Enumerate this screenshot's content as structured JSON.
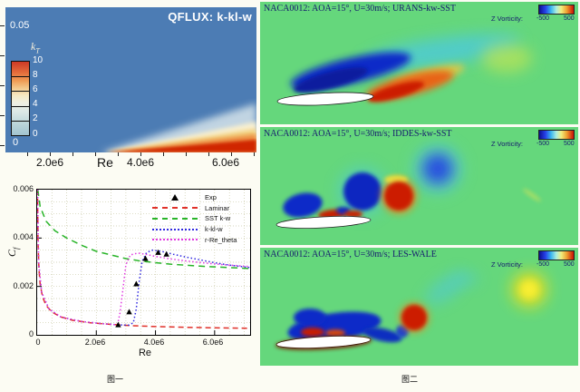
{
  "figure1": {
    "caption": "图一",
    "qflux": {
      "title": "QFLUX: k-kl-w",
      "y_axis": {
        "top_tick": "0.05",
        "bottom_tick": "0"
      },
      "x_axis": {
        "label": "Re",
        "ticks": [
          "2.0e6",
          "4.0e6",
          "6.0e6"
        ]
      },
      "colorbar": {
        "label_main": "k",
        "label_sub": "T",
        "ticks": [
          "10",
          "8",
          "6",
          "4",
          "2",
          "0"
        ]
      },
      "colors": {
        "field_blue": "#4c7cb4",
        "wedge_red": "#d02806"
      }
    },
    "cf_chart": {
      "ylabel_main": "C",
      "ylabel_sub": "f",
      "xlabel": "Re",
      "y_ticks": [
        "0.006",
        "0.004",
        "0.002",
        "0"
      ],
      "x_ticks": [
        "0",
        "2.0e6",
        "4.0e6",
        "6.0e6"
      ],
      "legend": [
        {
          "label": "Exp",
          "style": "triangle",
          "color": "#000000"
        },
        {
          "label": "Laminar",
          "style": "dashed",
          "color": "#e03028"
        },
        {
          "label": "SST k-w",
          "style": "dashed",
          "color": "#28b428"
        },
        {
          "label": "k-kl-w",
          "style": "dotted",
          "color": "#3028e0"
        },
        {
          "label": "r-Re_theta",
          "style": "dotted",
          "color": "#e038e0"
        }
      ]
    }
  },
  "figure2": {
    "caption": "图二",
    "colorbar": {
      "label": "Z Vorticity:",
      "min": "-500",
      "max": "500"
    },
    "panels": [
      {
        "title": "NACA0012: AOA=15°, U=30m/s; URANS-kw-SST"
      },
      {
        "title": "NACA0012: AOA=15°, U=30m/s; IDDES-kw-SST"
      },
      {
        "title": "NACA0012: AOA=15°, U=30m/s; LES-WALE"
      }
    ]
  },
  "chart_data": [
    {
      "type": "heatmap",
      "title": "QFLUX: k-kl-w",
      "quantity": "kT (turbulent kinetic energy)",
      "colorbar_ticks": [
        10,
        8,
        6,
        4,
        2,
        0
      ],
      "xlabel": "Re",
      "x_ticks": [
        "2.0e6",
        "4.0e6",
        "6.0e6"
      ],
      "x_range_e6": [
        1.1,
        6.7
      ],
      "ylim": [
        0,
        0.05
      ],
      "description": "Background field value 0 (blue). A transition wedge starts at the wall (y=0) near Re=3.2e6 and widens to the right; core of wedge reaches kT≈10 (red) with orange/yellow/white/cyan layers fading upward into blue."
    },
    {
      "type": "line",
      "title": "Skin friction coefficient vs Reynolds number",
      "xlabel": "Re",
      "ylabel": "Cf",
      "xlim_e6": [
        0,
        7.2
      ],
      "ylim": [
        0,
        0.006
      ],
      "grid": {
        "x_step_e6": 0.5,
        "y_step": 0.0005
      },
      "legend_position": "top-right",
      "series": [
        {
          "name": "Laminar",
          "color": "#e03028",
          "dash": "6,4",
          "width": 1.5,
          "x_e6": [
            0.012,
            0.03,
            0.06,
            0.1,
            0.18,
            0.3,
            0.5,
            0.8,
            1.2,
            1.8,
            2.5,
            3.2,
            4.0,
            5.0,
            6.0,
            6.5,
            7.2
          ],
          "y": [
            0.006,
            0.0038,
            0.0027,
            0.0021,
            0.00157,
            0.00122,
            0.00094,
            0.00074,
            0.0006,
            0.0005,
            0.00043,
            0.00038,
            0.00034,
            0.00031,
            0.00029,
            0.00028,
            0.00027
          ]
        },
        {
          "name": "SST k-w",
          "color": "#28b428",
          "dash": "7,5",
          "width": 1.5,
          "x_e6": [
            0.02,
            0.1,
            0.3,
            0.6,
            1.0,
            1.5,
            2.0,
            2.5,
            3.0,
            3.5,
            4.0,
            4.5,
            5.0,
            5.5,
            6.0,
            6.5,
            7.2
          ],
          "y": [
            0.006,
            0.0053,
            0.0047,
            0.0043,
            0.004,
            0.0037,
            0.00345,
            0.0033,
            0.00315,
            0.00305,
            0.00298,
            0.00292,
            0.00288,
            0.00284,
            0.00281,
            0.00278,
            0.00274
          ]
        },
        {
          "name": "k-kl-w",
          "color": "#3028e0",
          "dash": "1.5,2.5",
          "width": 1.5,
          "x_e6": [
            0.012,
            0.05,
            0.15,
            0.4,
            0.8,
            1.5,
            2.2,
            2.8,
            3.1,
            3.25,
            3.35,
            3.45,
            3.55,
            3.7,
            3.9,
            4.2,
            4.6,
            5.0,
            5.5,
            6.0,
            6.5,
            7.2
          ],
          "y": [
            0.006,
            0.003,
            0.00175,
            0.00107,
            0.00074,
            0.00055,
            0.00046,
            0.00041,
            0.0004,
            0.0005,
            0.00105,
            0.0022,
            0.00305,
            0.0034,
            0.0035,
            0.00345,
            0.00333,
            0.00322,
            0.0031,
            0.00298,
            0.00288,
            0.00278
          ]
        },
        {
          "name": "r-Re_theta",
          "color": "#e038e0",
          "dash": "1.5,2.5",
          "width": 1.5,
          "x_e6": [
            0.012,
            0.05,
            0.15,
            0.4,
            0.8,
            1.5,
            2.2,
            2.6,
            2.72,
            2.8,
            2.9,
            3.0,
            3.15,
            3.4,
            3.7,
            4.0,
            4.5,
            5.0,
            5.5,
            6.0,
            6.5,
            7.2
          ],
          "y": [
            0.006,
            0.003,
            0.00175,
            0.00107,
            0.00074,
            0.00055,
            0.00046,
            0.00042,
            0.00044,
            0.0009,
            0.0019,
            0.0029,
            0.0033,
            0.00338,
            0.00332,
            0.00324,
            0.00314,
            0.00306,
            0.00299,
            0.00293,
            0.00288,
            0.00282
          ]
        }
      ],
      "scatter": {
        "name": "Exp",
        "marker": "triangle",
        "color": "#000000",
        "x_e6": [
          2.74,
          3.11,
          3.35,
          3.66,
          4.09,
          4.37
        ],
        "y": [
          0.00041,
          0.00094,
          0.0021,
          0.00315,
          0.0034,
          0.00333
        ]
      }
    },
    {
      "type": "heatmap",
      "quantity": "Z Vorticity",
      "range": [
        -500,
        500
      ],
      "panels": [
        {
          "title": "NACA0012: AOA=15°, U=30m/s; URANS-kw-SST",
          "description": "Smooth attached shear layers: blue negative-vorticity layer over suction side trailing into cyan wake, red/orange positive layer from trailing edge, faint yellow blob downstream."
        },
        {
          "title": "NACA0012: AOA=15°, U=30m/s; IDDES-kw-SST",
          "description": "Discrete shed vortices: blue bubble at leading edge, large blue vortex and strong red vortex above trailing edge, diffuse blue vortex further downstream."
        },
        {
          "title": "NACA0012: AOA=15°, U=30m/s; LES-WALE",
          "description": "Fine-grained separation: large blue recirculation mass with red sublayers over airfoil, compact red vortex behind trailing edge, cyan arc and yellow vortex downstream."
        }
      ]
    }
  ]
}
